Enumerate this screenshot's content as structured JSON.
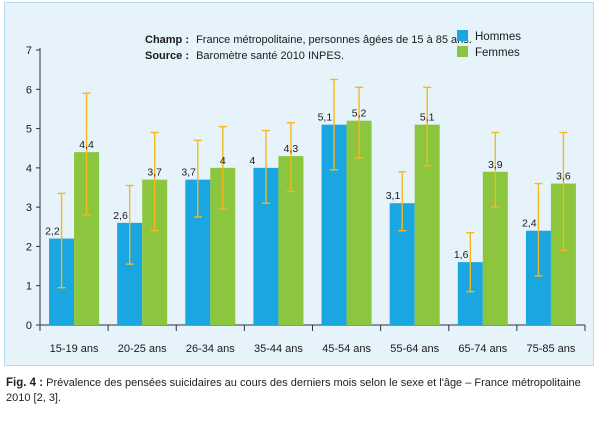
{
  "chart_data": {
    "type": "bar",
    "categories": [
      "15-19 ans",
      "20-25 ans",
      "26-34 ans",
      "35-44 ans",
      "45-54 ans",
      "55-64 ans",
      "65-74 ans",
      "75-85 ans"
    ],
    "series": [
      {
        "name": "Hommes",
        "color": "#1aa6e0",
        "values": [
          2.2,
          2.6,
          3.7,
          4,
          5.1,
          3.1,
          1.6,
          2.4
        ],
        "labels": [
          "2,2",
          "2,6",
          "3,7",
          "4",
          "5,1",
          "3,1",
          "1,6",
          "2,4"
        ],
        "error_low": [
          0.95,
          1.55,
          2.75,
          3.1,
          3.95,
          2.4,
          0.85,
          1.25
        ],
        "error_high": [
          3.35,
          3.55,
          4.7,
          4.95,
          6.25,
          3.9,
          2.35,
          3.6
        ]
      },
      {
        "name": "Femmes",
        "color": "#8cc63f",
        "values": [
          4.4,
          3.7,
          4,
          4.3,
          5.2,
          5.1,
          3.9,
          3.6
        ],
        "labels": [
          "4,4",
          "3,7",
          "4",
          "4,3",
          "5,2",
          "5,1",
          "3,9",
          "3,6"
        ],
        "error_low": [
          2.8,
          2.4,
          2.95,
          3.4,
          4.25,
          4.05,
          3.0,
          1.9
        ],
        "error_high": [
          5.9,
          4.9,
          5.05,
          5.15,
          6.05,
          6.05,
          4.9,
          4.9
        ]
      }
    ],
    "error_bar_color": "#f5b820",
    "yticks": [
      0,
      1,
      2,
      3,
      4,
      5,
      6,
      7
    ],
    "ylim": [
      0,
      7
    ],
    "legend_position": "top-right",
    "grid": false
  },
  "notes": {
    "champ_label": "Champ :",
    "champ_text": "France métropolitaine, personnes âgées de 15 à 85 ans.",
    "source_label": "Source :",
    "source_text": "Baromètre santé 2010 INPES."
  },
  "caption": {
    "label": "Fig. 4 :",
    "text": "Prévalence des pensées suicidaires au cours des derniers mois selon le sexe et l'âge – France métropolitaine 2010 [2, 3]."
  }
}
